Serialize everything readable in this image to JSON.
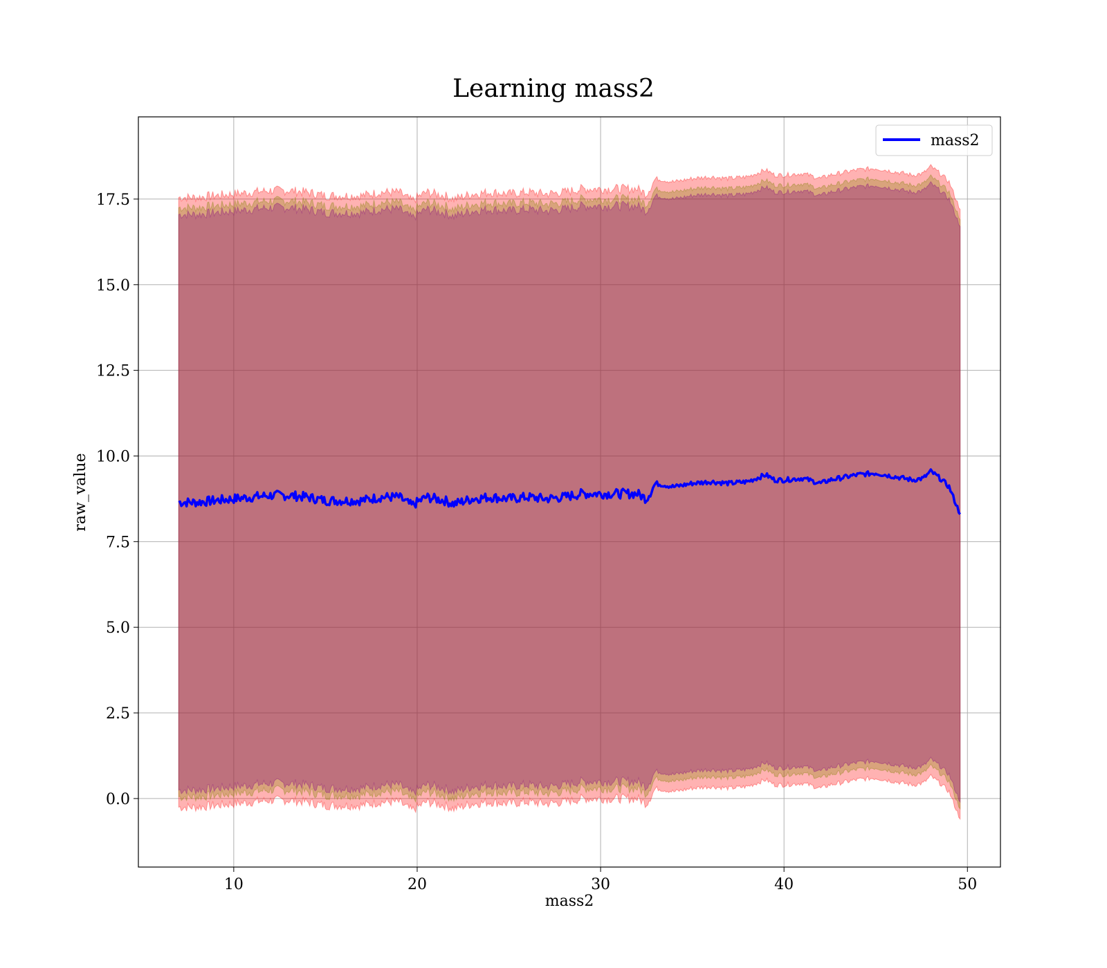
{
  "chart_data": {
    "type": "area",
    "title": "Learning mass2",
    "xlabel": "mass2",
    "ylabel": "raw_value",
    "xlim": [
      4.8,
      51.8
    ],
    "ylim": [
      -2.0,
      19.9
    ],
    "xticks": [
      10,
      20,
      30,
      40,
      50
    ],
    "yticks": [
      0.0,
      2.5,
      5.0,
      7.5,
      10.0,
      12.5,
      15.0,
      17.5
    ],
    "xtick_labels": [
      "10",
      "20",
      "30",
      "40",
      "50"
    ],
    "ytick_labels": [
      "0.0",
      "2.5",
      "5.0",
      "7.5",
      "10.0",
      "12.5",
      "15.0",
      "17.5"
    ],
    "grid": true,
    "legend": {
      "position": "top-right",
      "entries": [
        "mass2"
      ]
    },
    "series": [
      {
        "name": "mass2",
        "color": "#0000ff",
        "x": [
          7.0,
          8.0,
          9.0,
          10.0,
          11.0,
          12.0,
          13.0,
          14.0,
          15.0,
          16.0,
          17.0,
          18.0,
          19.0,
          19.7,
          20.5,
          21.5,
          22.0,
          23.0,
          24.0,
          25.0,
          26.0,
          27.0,
          28.0,
          29.0,
          30.0,
          31.0,
          32.0,
          32.5,
          33.0,
          34.0,
          35.0,
          36.0,
          37.0,
          38.0,
          39.0,
          39.5,
          40.0,
          41.0,
          42.0,
          42.5,
          43.0,
          44.0,
          45.0,
          46.0,
          47.0,
          47.6,
          48.0,
          48.5,
          49.0,
          49.3,
          49.6
        ],
        "y": [
          8.65,
          8.65,
          8.7,
          8.75,
          8.8,
          8.85,
          8.85,
          8.8,
          8.7,
          8.7,
          8.7,
          8.8,
          8.8,
          8.55,
          8.8,
          8.7,
          8.6,
          8.75,
          8.8,
          8.75,
          8.8,
          8.75,
          8.8,
          8.9,
          8.9,
          8.9,
          8.9,
          8.75,
          9.2,
          9.1,
          9.2,
          9.25,
          9.2,
          9.25,
          9.45,
          9.3,
          9.3,
          9.35,
          9.2,
          9.3,
          9.35,
          9.45,
          9.5,
          9.4,
          9.3,
          9.35,
          9.55,
          9.35,
          9.1,
          8.7,
          8.3
        ]
      }
    ],
    "bands": [
      {
        "color": "#ff0000",
        "opacity": 0.3,
        "width": 8.9
      },
      {
        "color": "#808000",
        "opacity": 0.3,
        "width": 8.6
      },
      {
        "color": "#800080",
        "opacity": 0.3,
        "width": 8.4
      }
    ]
  }
}
